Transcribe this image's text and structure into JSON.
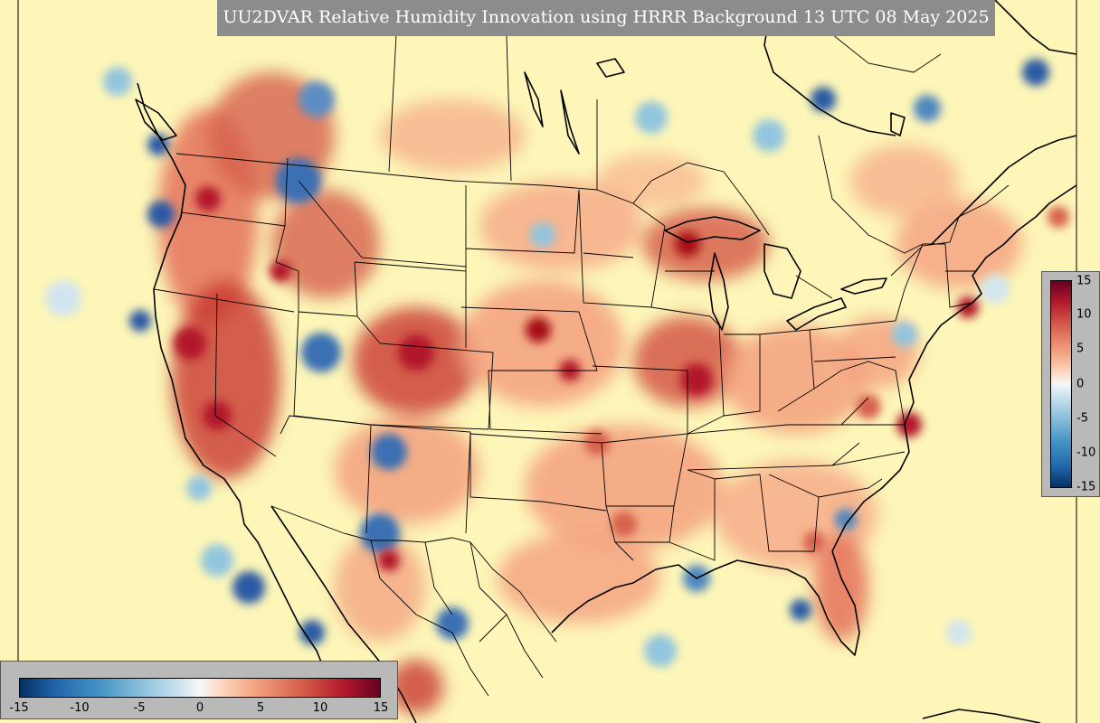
{
  "title": "UU2DVAR Relative Humidity Innovation using HRRR Background 13 UTC 08 May 2025",
  "colorbar": {
    "vertical_ticks": [
      "15",
      "10",
      "5",
      "0",
      "-5",
      "-10",
      "-15"
    ],
    "horizontal_ticks": [
      "-15",
      "-10",
      "-5",
      "0",
      "5",
      "10",
      "15"
    ],
    "range": [
      -15,
      15
    ],
    "colormap": "RdYlBu_r",
    "colors": [
      "#053061",
      "#2166ac",
      "#4393c3",
      "#92c5de",
      "#d1e5f0",
      "#f7f7f7",
      "#fddbc7",
      "#f4a582",
      "#d6604d",
      "#b2182b",
      "#67001f"
    ]
  },
  "map": {
    "field": "relative humidity innovation",
    "background_color": "#fdf6b8",
    "boundary_color": "#000000"
  }
}
